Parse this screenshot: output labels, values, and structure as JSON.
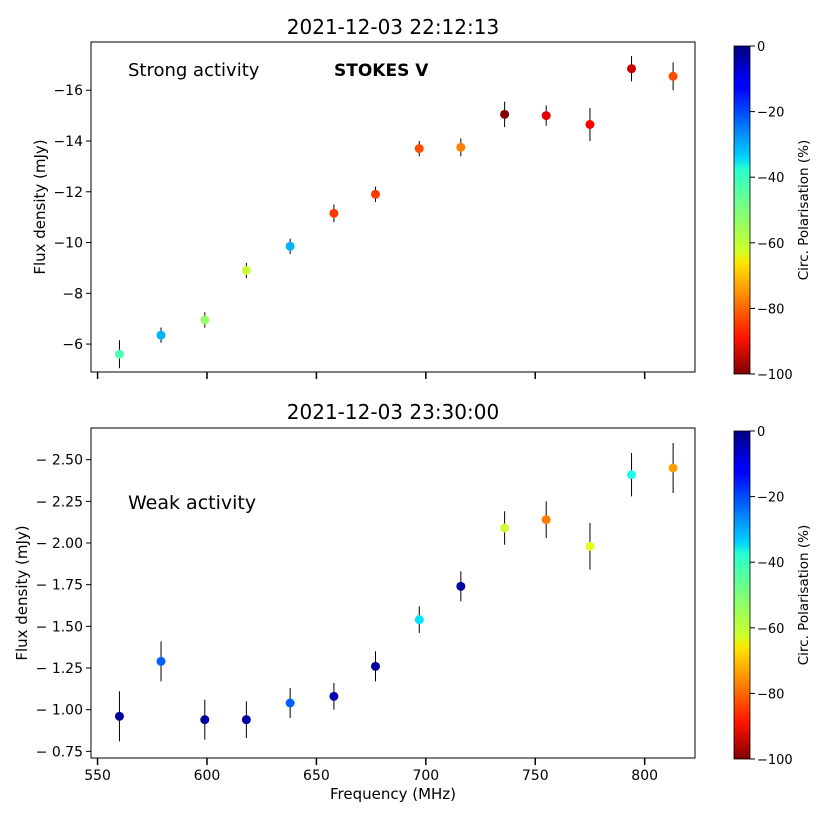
{
  "chart_data": [
    {
      "type": "scatter",
      "title": "2021-12-03 22:12:13",
      "ylabel": "Flux density (mJy)",
      "xlabel": "",
      "annotations": [
        "Strong activity",
        "STOKES V"
      ],
      "annotation_color": "#2b4f7a",
      "xlim": [
        547,
        823
      ],
      "ylim": [
        -4.9,
        -17.9
      ],
      "yticks": [
        -6,
        -8,
        -10,
        -12,
        -14,
        -16
      ],
      "ytick_labels": [
        "−6",
        "−8",
        "−10",
        "−12",
        "−14",
        "−16"
      ],
      "xticks": [
        550,
        600,
        650,
        700,
        750,
        800
      ],
      "xtick_labels": [
        "",
        "",
        "",
        "",
        "",
        ""
      ],
      "colorbar": {
        "label": "Circ. Polarisation (%)",
        "range": [
          0,
          -100
        ],
        "ticks": [
          0,
          -20,
          -40,
          -60,
          -80,
          -100
        ],
        "tick_labels": [
          "0",
          "−20",
          "−40",
          "−60",
          "−80",
          "−100"
        ]
      },
      "points": [
        {
          "x": 560,
          "y": -5.6,
          "err": 0.55,
          "pol": -45
        },
        {
          "x": 579,
          "y": -6.35,
          "err": 0.3,
          "pol": -30
        },
        {
          "x": 599,
          "y": -6.95,
          "err": 0.3,
          "pol": -52
        },
        {
          "x": 618,
          "y": -8.9,
          "err": 0.3,
          "pol": -57
        },
        {
          "x": 638,
          "y": -9.85,
          "err": 0.3,
          "pol": -30
        },
        {
          "x": 658,
          "y": -11.15,
          "err": 0.35,
          "pol": -82
        },
        {
          "x": 677,
          "y": -11.9,
          "err": 0.3,
          "pol": -82
        },
        {
          "x": 697,
          "y": -13.7,
          "err": 0.3,
          "pol": -80
        },
        {
          "x": 716,
          "y": -13.75,
          "err": 0.35,
          "pol": -75
        },
        {
          "x": 736,
          "y": -15.05,
          "err": 0.5,
          "pol": -100
        },
        {
          "x": 755,
          "y": -15.0,
          "err": 0.4,
          "pol": -90
        },
        {
          "x": 775,
          "y": -14.65,
          "err": 0.65,
          "pol": -88
        },
        {
          "x": 794,
          "y": -16.85,
          "err": 0.5,
          "pol": -93
        },
        {
          "x": 813,
          "y": -16.55,
          "err": 0.55,
          "pol": -80
        }
      ]
    },
    {
      "type": "scatter",
      "title": "2021-12-03 23:30:00",
      "ylabel": "Flux density (mJy)",
      "xlabel": "Frequency (MHz)",
      "annotations": [
        "Weak activity"
      ],
      "xlim": [
        547,
        823
      ],
      "ylim": [
        -0.71,
        -2.69
      ],
      "yticks": [
        -0.75,
        -1.0,
        -1.25,
        -1.5,
        -1.75,
        -2.0,
        -2.25,
        -2.5
      ],
      "ytick_labels": [
        "− 0.75",
        "− 1.00",
        "− 1.25",
        "− 1.50",
        "− 1.75",
        "− 2.00",
        "− 2.25",
        "− 2.50"
      ],
      "xticks": [
        550,
        600,
        650,
        700,
        750,
        800
      ],
      "xtick_labels": [
        "550",
        "600",
        "650",
        "700",
        "750",
        "800"
      ],
      "colorbar": {
        "label": "Circ. Polarisation (%)",
        "range": [
          0,
          -100
        ],
        "ticks": [
          0,
          -20,
          -40,
          -60,
          -80,
          -100
        ],
        "tick_labels": [
          "0",
          "−20",
          "−40",
          "−60",
          "−80",
          "−100"
        ]
      },
      "points": [
        {
          "x": 560,
          "y": -0.96,
          "err": 0.15,
          "pol": -3
        },
        {
          "x": 579,
          "y": -1.29,
          "err": 0.12,
          "pol": -22
        },
        {
          "x": 599,
          "y": -0.94,
          "err": 0.12,
          "pol": -3
        },
        {
          "x": 618,
          "y": -0.94,
          "err": 0.11,
          "pol": -3
        },
        {
          "x": 638,
          "y": -1.04,
          "err": 0.09,
          "pol": -22
        },
        {
          "x": 658,
          "y": -1.08,
          "err": 0.08,
          "pol": -5
        },
        {
          "x": 677,
          "y": -1.26,
          "err": 0.09,
          "pol": -3
        },
        {
          "x": 697,
          "y": -1.54,
          "err": 0.08,
          "pol": -35
        },
        {
          "x": 716,
          "y": -1.74,
          "err": 0.09,
          "pol": -3
        },
        {
          "x": 736,
          "y": -2.09,
          "err": 0.1,
          "pol": -58
        },
        {
          "x": 755,
          "y": -2.14,
          "err": 0.11,
          "pol": -75
        },
        {
          "x": 775,
          "y": -1.98,
          "err": 0.14,
          "pol": -60
        },
        {
          "x": 794,
          "y": -2.41,
          "err": 0.13,
          "pol": -40
        },
        {
          "x": 813,
          "y": -2.45,
          "err": 0.15,
          "pol": -72
        }
      ]
    }
  ]
}
